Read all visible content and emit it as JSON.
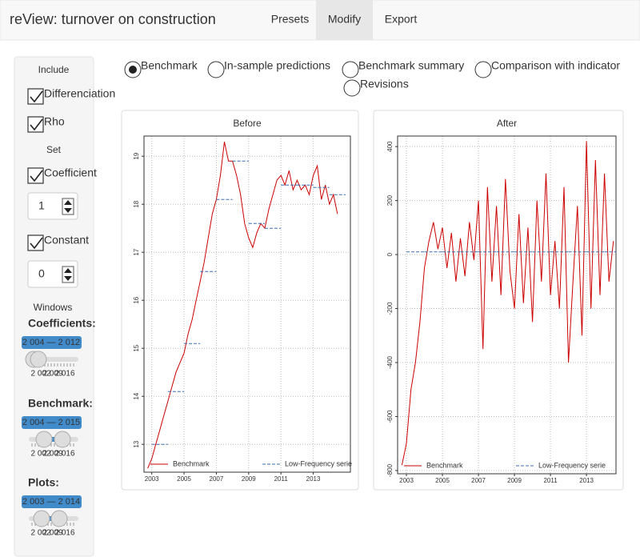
{
  "navbar": {
    "title": "reView: turnover on construction",
    "tabs": [
      "Presets",
      "Modify",
      "Export"
    ],
    "active_tab": 1
  },
  "options": [
    "Benchmark",
    "In-sample predictions",
    "Benchmark summary",
    "Comparison with indicator",
    "Revisions"
  ],
  "selected_option": 0,
  "sidebar": {
    "include_heading": "Include",
    "differenciation": {
      "label": "Differenciation",
      "checked": true
    },
    "rho": {
      "label": "Rho",
      "checked": true
    },
    "set_heading": "Set",
    "coefficient": {
      "label": "Coefficient",
      "checked": true,
      "input": "1"
    },
    "constant": {
      "label": "Constant",
      "checked": true,
      "input": "0"
    },
    "windows_heading": "Windows",
    "sliders": [
      {
        "label": "Coefficients:",
        "range": "2 004 — 2 012",
        "ticks": [
          "2 002",
          "2 009",
          "2 016"
        ]
      },
      {
        "label": "Benchmark:",
        "range": "2 004 — 2 015",
        "ticks": [
          "2 002",
          "2 009",
          "2 016"
        ]
      },
      {
        "label": "Plots:",
        "range": "2 003 — 2 014",
        "ticks": [
          "2 002",
          "2 009",
          "2 016"
        ]
      }
    ]
  },
  "chart_data": [
    {
      "type": "line",
      "title": "Before",
      "grid": true,
      "legend": "bottom",
      "xlim": [
        2002.52,
        2015.3
      ],
      "xticks": [
        2003,
        2005,
        2007,
        2009,
        2011,
        2013
      ],
      "ylim": [
        12.42,
        19.42
      ],
      "yticks": [
        13,
        14,
        15,
        16,
        17,
        18,
        19
      ],
      "series": [
        {
          "name": "Benchmark",
          "color": "#cc0000",
          "step": false,
          "dashed": false,
          "x": [
            2002.75,
            2003,
            2003.25,
            2003.5,
            2003.75,
            2004,
            2004.25,
            2004.5,
            2004.75,
            2005,
            2005.25,
            2005.5,
            2005.75,
            2006,
            2006.25,
            2006.5,
            2006.75,
            2007,
            2007.25,
            2007.5,
            2007.75,
            2008,
            2008.25,
            2008.5,
            2008.75,
            2009,
            2009.25,
            2009.5,
            2009.75,
            2010,
            2010.25,
            2010.5,
            2010.75,
            2011,
            2011.25,
            2011.5,
            2011.75,
            2012,
            2012.25,
            2012.5,
            2012.75,
            2013,
            2013.25,
            2013.5,
            2013.75,
            2014,
            2014.25,
            2014.5
          ],
          "values": [
            12.5,
            12.7,
            13.0,
            13.3,
            13.6,
            13.9,
            14.2,
            14.5,
            14.7,
            14.9,
            15.3,
            15.6,
            16.0,
            16.4,
            16.8,
            17.3,
            17.8,
            18.1,
            18.6,
            19.3,
            18.9,
            18.9,
            18.6,
            18.2,
            17.6,
            17.3,
            17.1,
            17.4,
            17.6,
            17.5,
            17.9,
            18.2,
            18.5,
            18.6,
            18.4,
            18.7,
            18.3,
            18.5,
            18.3,
            18.4,
            18.2,
            18.6,
            18.8,
            18.1,
            18.4,
            18.0,
            18.2,
            17.8
          ]
        },
        {
          "name": "Low-Frequency serie",
          "color": "#3a6fb0",
          "step": true,
          "dashed": true,
          "x": [
            2003,
            2004,
            2005,
            2006,
            2007,
            2008,
            2009,
            2010,
            2011,
            2012,
            2013,
            2014
          ],
          "values": [
            13.0,
            14.1,
            15.1,
            16.6,
            18.1,
            18.9,
            17.6,
            17.5,
            18.4,
            18.4,
            18.35,
            18.2
          ]
        }
      ]
    },
    {
      "type": "line",
      "title": "After",
      "grid": true,
      "legend": "bottom",
      "xlim": [
        2002.51,
        2014.64
      ],
      "xticks": [
        2003,
        2005,
        2007,
        2009,
        2011,
        2013
      ],
      "ylim": [
        -812,
        439
      ],
      "yticks": [
        -800,
        -600,
        -400,
        -200,
        0,
        200,
        400
      ],
      "series": [
        {
          "name": "Benchmark",
          "color": "#cc0000",
          "step": false,
          "dashed": false,
          "x": [
            2002.75,
            2003,
            2003.25,
            2003.5,
            2003.75,
            2004,
            2004.25,
            2004.5,
            2004.75,
            2005,
            2005.25,
            2005.5,
            2005.75,
            2006,
            2006.25,
            2006.5,
            2006.75,
            2007,
            2007.25,
            2007.5,
            2007.75,
            2008,
            2008.25,
            2008.5,
            2008.75,
            2009,
            2009.25,
            2009.5,
            2009.75,
            2010,
            2010.25,
            2010.5,
            2010.75,
            2011,
            2011.25,
            2011.5,
            2011.75,
            2012,
            2012.25,
            2012.5,
            2012.75,
            2013,
            2013.25,
            2013.5,
            2013.75,
            2014,
            2014.25,
            2014.5
          ],
          "values": [
            -780,
            -700,
            -500,
            -400,
            -250,
            -50,
            50,
            120,
            20,
            100,
            -50,
            80,
            -100,
            60,
            -80,
            120,
            -20,
            200,
            -350,
            250,
            -100,
            180,
            -150,
            280,
            -60,
            -200,
            150,
            -180,
            100,
            -250,
            200,
            -100,
            300,
            -150,
            50,
            -200,
            250,
            -400,
            -100,
            180,
            -300,
            420,
            -200,
            350,
            -150,
            300,
            -100,
            50
          ]
        },
        {
          "name": "Low-Frequency serie",
          "color": "#3a6fb0",
          "step": true,
          "dashed": true,
          "x": [
            2003,
            2004,
            2005,
            2006,
            2007,
            2008,
            2009,
            2010,
            2011,
            2012,
            2013,
            2014
          ],
          "values": [
            10,
            10,
            10,
            10,
            10,
            10,
            10,
            10,
            10,
            10,
            10,
            10
          ]
        }
      ]
    }
  ]
}
